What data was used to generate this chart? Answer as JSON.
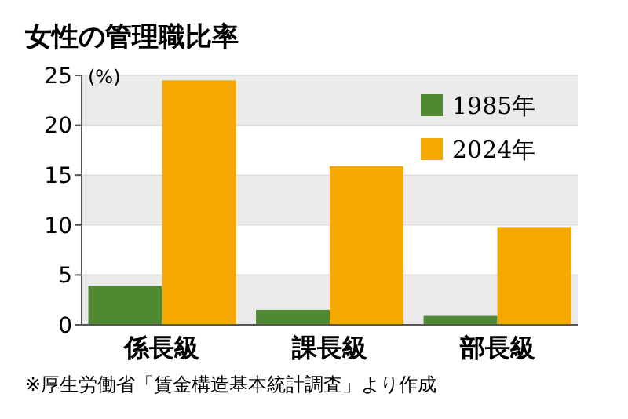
{
  "chart_data": {
    "type": "bar",
    "title": "女性の管理職比率",
    "ylabel": "(%)",
    "categories": [
      "係長級",
      "課長級",
      "部長級"
    ],
    "series": [
      {
        "name": "1985年",
        "color": "#4f8a33",
        "values": [
          3.9,
          1.5,
          0.9
        ]
      },
      {
        "name": "2024年",
        "color": "#f5a800",
        "values": [
          24.5,
          15.9,
          9.8
        ]
      }
    ],
    "ylim": [
      0,
      25
    ],
    "yticks": [
      0,
      5,
      10,
      15,
      20,
      25
    ],
    "grid": "y",
    "legend": "top right",
    "annotations": [
      "※厚生労働省「賃金構造基本統計調査」より作成"
    ]
  }
}
